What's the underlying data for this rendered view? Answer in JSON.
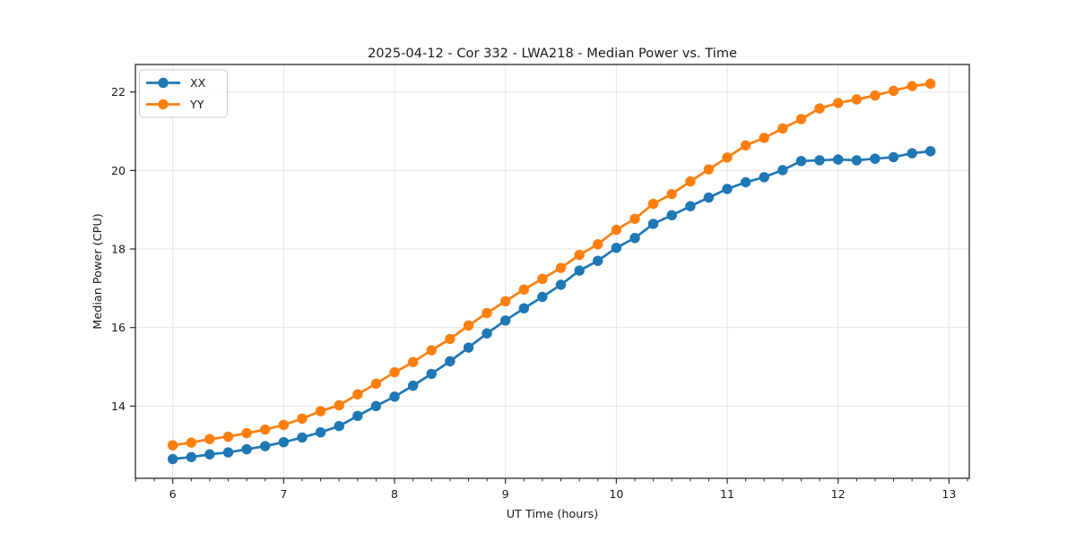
{
  "figure": {
    "background": "#ffffff",
    "plot_border_color": "#2a2a2a",
    "grid_color": "#e4e4e4",
    "text_color": "#1a1a1a"
  },
  "chart_data": {
    "type": "line",
    "title": "2025-04-12 - Cor 332 - LWA218 - Median Power vs. Time",
    "xlabel": "UT Time (hours)",
    "ylabel": "Median Power (CPU)",
    "xlim": [
      5.663,
      13.183
    ],
    "ylim": [
      12.16,
      22.7
    ],
    "xticks": [
      6,
      7,
      8,
      9,
      10,
      11,
      12,
      13
    ],
    "yticks": [
      14,
      16,
      18,
      20,
      22
    ],
    "x_minor_step": 0.166667,
    "grid": true,
    "legend_position": "upper left",
    "marker": "circle",
    "x": [
      6.0,
      6.167,
      6.333,
      6.5,
      6.667,
      6.833,
      7.0,
      7.167,
      7.333,
      7.5,
      7.667,
      7.833,
      8.0,
      8.167,
      8.333,
      8.5,
      8.667,
      8.833,
      9.0,
      9.167,
      9.333,
      9.5,
      9.667,
      9.833,
      10.0,
      10.167,
      10.333,
      10.5,
      10.667,
      10.833,
      11.0,
      11.167,
      11.333,
      11.5,
      11.667,
      11.833,
      12.0,
      12.167,
      12.333,
      12.5,
      12.667,
      12.833
    ],
    "series": [
      {
        "name": "XX",
        "color": "#1f77b4",
        "values": [
          12.65,
          12.7,
          12.77,
          12.82,
          12.9,
          12.98,
          13.08,
          13.2,
          13.33,
          13.49,
          13.75,
          14.0,
          14.24,
          14.52,
          14.82,
          15.14,
          15.49,
          15.85,
          16.18,
          16.49,
          16.78,
          17.09,
          17.45,
          17.7,
          18.03,
          18.28,
          18.64,
          18.86,
          19.09,
          19.31,
          19.53,
          19.7,
          19.83,
          20.01,
          20.24,
          20.26,
          20.28,
          20.26,
          20.3,
          20.34,
          20.44,
          20.49
        ]
      },
      {
        "name": "YY",
        "color": "#ff7f0e",
        "values": [
          13.0,
          13.07,
          13.16,
          13.22,
          13.31,
          13.4,
          13.52,
          13.68,
          13.87,
          14.02,
          14.3,
          14.57,
          14.86,
          15.12,
          15.42,
          15.71,
          16.05,
          16.37,
          16.67,
          16.97,
          17.24,
          17.52,
          17.85,
          18.12,
          18.49,
          18.77,
          19.15,
          19.4,
          19.72,
          20.03,
          20.33,
          20.64,
          20.83,
          21.07,
          21.31,
          21.58,
          21.72,
          21.81,
          21.91,
          22.03,
          22.15,
          22.21
        ]
      }
    ]
  }
}
